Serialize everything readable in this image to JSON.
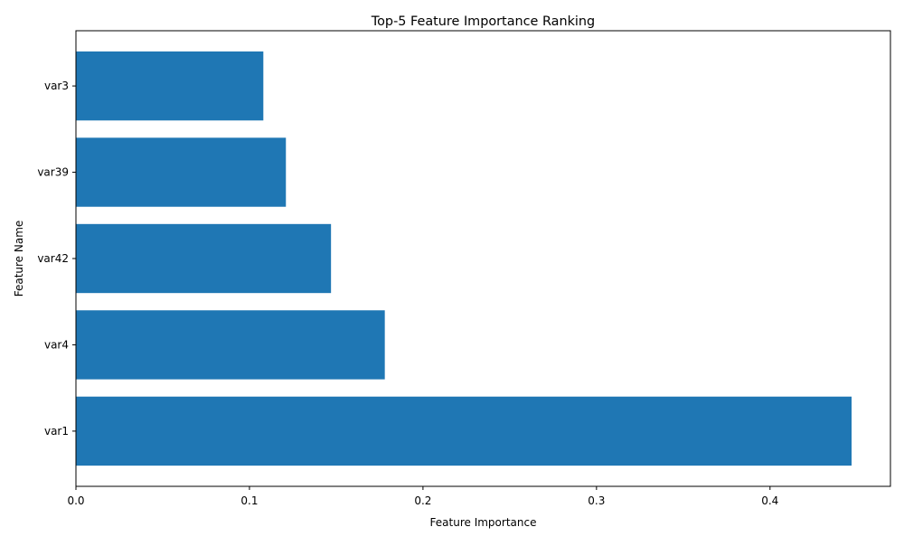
{
  "chart_data": {
    "type": "bar",
    "orientation": "horizontal",
    "title": "Top-5 Feature Importance Ranking",
    "xlabel": "Feature Importance",
    "ylabel": "Feature Name",
    "categories": [
      "var1",
      "var4",
      "var42",
      "var39",
      "var3"
    ],
    "values": [
      0.447,
      0.178,
      0.147,
      0.121,
      0.108
    ],
    "xlim": [
      0,
      0.4694
    ],
    "xticks": [
      0.0,
      0.1,
      0.2,
      0.3,
      0.4
    ],
    "xtick_labels": [
      "0.0",
      "0.1",
      "0.2",
      "0.3",
      "0.4"
    ],
    "grid": false,
    "bar_color": "#1f77b4"
  }
}
